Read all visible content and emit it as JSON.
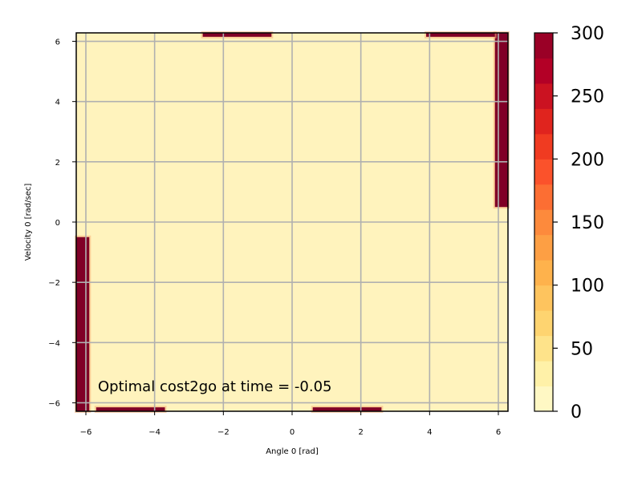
{
  "chart_data": {
    "type": "heatmap",
    "title": "",
    "annotation": "Optimal cost2go at time = -0.05",
    "xlabel": "Angle 0 [rad]",
    "ylabel": "Velocity 0 [rad/sec]",
    "xlim": [
      -6.28,
      6.28
    ],
    "ylim": [
      -6.28,
      6.28
    ],
    "xticks": [
      -6,
      -4,
      -2,
      0,
      2,
      4,
      6
    ],
    "yticks": [
      -6,
      -4,
      -2,
      0,
      2,
      4,
      6
    ],
    "xtick_labels": [
      "−6",
      "−4",
      "−2",
      "0",
      "2",
      "4",
      "6"
    ],
    "ytick_labels": [
      "−6",
      "−4",
      "−2",
      "0",
      "2",
      "4",
      "6"
    ],
    "grid": true,
    "colormap": "YlOrRd",
    "colorbar": {
      "range": [
        0,
        300
      ],
      "ticks": [
        0,
        50,
        100,
        150,
        200,
        250,
        300
      ],
      "tick_labels": [
        "0",
        "50",
        "100",
        "150",
        "200",
        "250",
        "300"
      ],
      "levels": [
        0,
        20,
        40,
        60,
        80,
        100,
        120,
        140,
        160,
        180,
        200,
        220,
        240,
        260,
        280,
        300
      ],
      "colors": [
        "#fff8c4",
        "#fff1a8",
        "#fee38a",
        "#fed470",
        "#fec45e",
        "#feb24c",
        "#fd9f44",
        "#fd8a3c",
        "#fc6e33",
        "#fb522b",
        "#f03b21",
        "#e0241e",
        "#cb1221",
        "#b30026",
        "#9a0026",
        "#800026"
      ]
    },
    "background_value_approx": 5,
    "high_cost_regions": [
      {
        "description": "right edge band, velocity > ~0.5",
        "x_range": [
          5.9,
          6.28
        ],
        "y_range": [
          0.5,
          6.28
        ],
        "value": 300
      },
      {
        "description": "left edge band, velocity < ~-0.5",
        "x_range": [
          -6.28,
          -5.9
        ],
        "y_range": [
          -6.28,
          -0.5
        ],
        "value": 300
      },
      {
        "description": "top edge strip",
        "x_range": [
          -2.6,
          -0.6
        ],
        "y_range": [
          6.15,
          6.28
        ],
        "value": 300
      },
      {
        "description": "top edge strip",
        "x_range": [
          3.9,
          5.9
        ],
        "y_range": [
          6.15,
          6.28
        ],
        "value": 300
      },
      {
        "description": "bottom edge strip",
        "x_range": [
          -5.7,
          -3.7
        ],
        "y_range": [
          -6.28,
          -6.15
        ],
        "value": 300
      },
      {
        "description": "bottom edge strip",
        "x_range": [
          0.6,
          2.6
        ],
        "y_range": [
          -6.28,
          -6.15
        ],
        "value": 300
      }
    ]
  },
  "colors": {
    "background_field": "#fff3bd",
    "high_cost": "#800026",
    "grid": "#b0b0b0",
    "axis": "#000000"
  }
}
